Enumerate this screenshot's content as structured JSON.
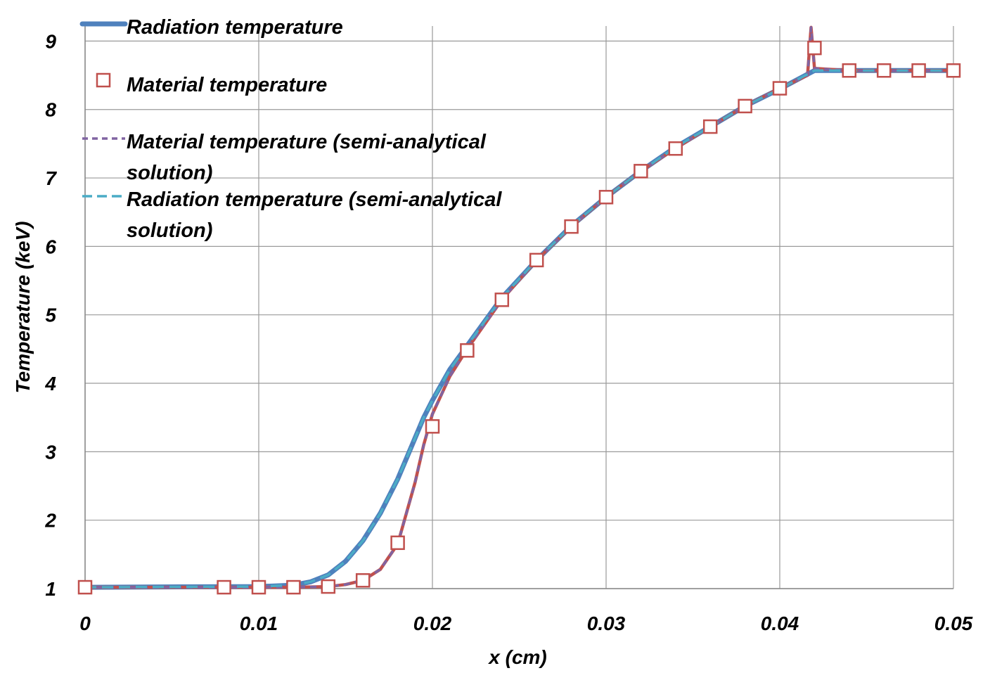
{
  "chart_data": {
    "type": "line",
    "xlabel": "x (cm)",
    "ylabel": "Temperature (keV)",
    "xlim": [
      0,
      0.05
    ],
    "ylim": [
      1,
      9
    ],
    "xticks": [
      "0",
      "0.01",
      "0.02",
      "0.03",
      "0.04",
      "0.05"
    ],
    "yticks": [
      "1",
      "2",
      "3",
      "4",
      "5",
      "6",
      "7",
      "8",
      "9"
    ],
    "grid": true,
    "legend_position": "top-left",
    "series": [
      {
        "name": "Radiation temperature",
        "style": "solid",
        "color": "#4f81bd",
        "x": [
          0,
          0.01,
          0.012,
          0.013,
          0.014,
          0.015,
          0.016,
          0.017,
          0.018,
          0.019,
          0.0195,
          0.02,
          0.021,
          0.022,
          0.024,
          0.026,
          0.028,
          0.03,
          0.032,
          0.034,
          0.036,
          0.038,
          0.04,
          0.042,
          0.044,
          0.046,
          0.048,
          0.05
        ],
        "y": [
          1.02,
          1.03,
          1.05,
          1.1,
          1.2,
          1.4,
          1.7,
          2.1,
          2.6,
          3.2,
          3.5,
          3.75,
          4.2,
          4.55,
          5.25,
          5.8,
          6.3,
          6.72,
          7.1,
          7.45,
          7.75,
          8.05,
          8.3,
          8.57,
          8.57,
          8.57,
          8.57,
          8.57
        ]
      },
      {
        "name": "Material temperature",
        "style": "markers",
        "color": "#c0504d",
        "x": [
          0,
          0.008,
          0.01,
          0.012,
          0.014,
          0.016,
          0.018,
          0.02,
          0.022,
          0.024,
          0.026,
          0.028,
          0.03,
          0.032,
          0.034,
          0.036,
          0.038,
          0.04,
          0.042,
          0.044,
          0.046,
          0.048,
          0.05
        ],
        "y": [
          1.02,
          1.02,
          1.02,
          1.02,
          1.03,
          1.12,
          1.67,
          3.37,
          4.48,
          5.22,
          5.8,
          6.29,
          6.72,
          7.1,
          7.43,
          7.75,
          8.05,
          8.31,
          8.9,
          8.57,
          8.57,
          8.57,
          8.57
        ]
      },
      {
        "name": "Material temperature (semi-analytical solution)",
        "style": "dashed",
        "color": "#8064a2",
        "x": [
          0,
          0.01,
          0.012,
          0.014,
          0.015,
          0.016,
          0.017,
          0.018,
          0.019,
          0.0195,
          0.02,
          0.021,
          0.022,
          0.024,
          0.026,
          0.028,
          0.03,
          0.032,
          0.034,
          0.036,
          0.038,
          0.04,
          0.0416,
          0.0418,
          0.042,
          0.044,
          0.046,
          0.048,
          0.05
        ],
        "y": [
          1.02,
          1.02,
          1.02,
          1.03,
          1.06,
          1.12,
          1.28,
          1.65,
          2.55,
          3.1,
          3.55,
          4.1,
          4.5,
          5.22,
          5.8,
          6.29,
          6.72,
          7.1,
          7.43,
          7.75,
          8.05,
          8.31,
          8.5,
          9.2,
          8.6,
          8.57,
          8.57,
          8.57,
          8.57
        ]
      },
      {
        "name": "Radiation temperature (semi-analytical solution)",
        "style": "dashed",
        "color": "#4bacc6",
        "x": [
          0,
          0.01,
          0.012,
          0.013,
          0.014,
          0.015,
          0.016,
          0.017,
          0.018,
          0.019,
          0.0195,
          0.02,
          0.021,
          0.022,
          0.024,
          0.026,
          0.028,
          0.03,
          0.032,
          0.034,
          0.036,
          0.038,
          0.04,
          0.042,
          0.044,
          0.046,
          0.048,
          0.05
        ],
        "y": [
          1.02,
          1.03,
          1.05,
          1.1,
          1.2,
          1.4,
          1.7,
          2.1,
          2.6,
          3.2,
          3.5,
          3.75,
          4.2,
          4.55,
          5.25,
          5.8,
          6.3,
          6.72,
          7.1,
          7.45,
          7.75,
          8.05,
          8.3,
          8.57,
          8.57,
          8.57,
          8.57,
          8.57
        ]
      }
    ],
    "legend": [
      {
        "lines": [
          "Radiation temperature"
        ]
      },
      {
        "lines": [
          "Material temperature"
        ]
      },
      {
        "lines": [
          "Material temperature (semi-analytical",
          "solution)"
        ]
      },
      {
        "lines": [
          "Radiation temperature (semi-analytical",
          "solution)"
        ]
      }
    ]
  }
}
